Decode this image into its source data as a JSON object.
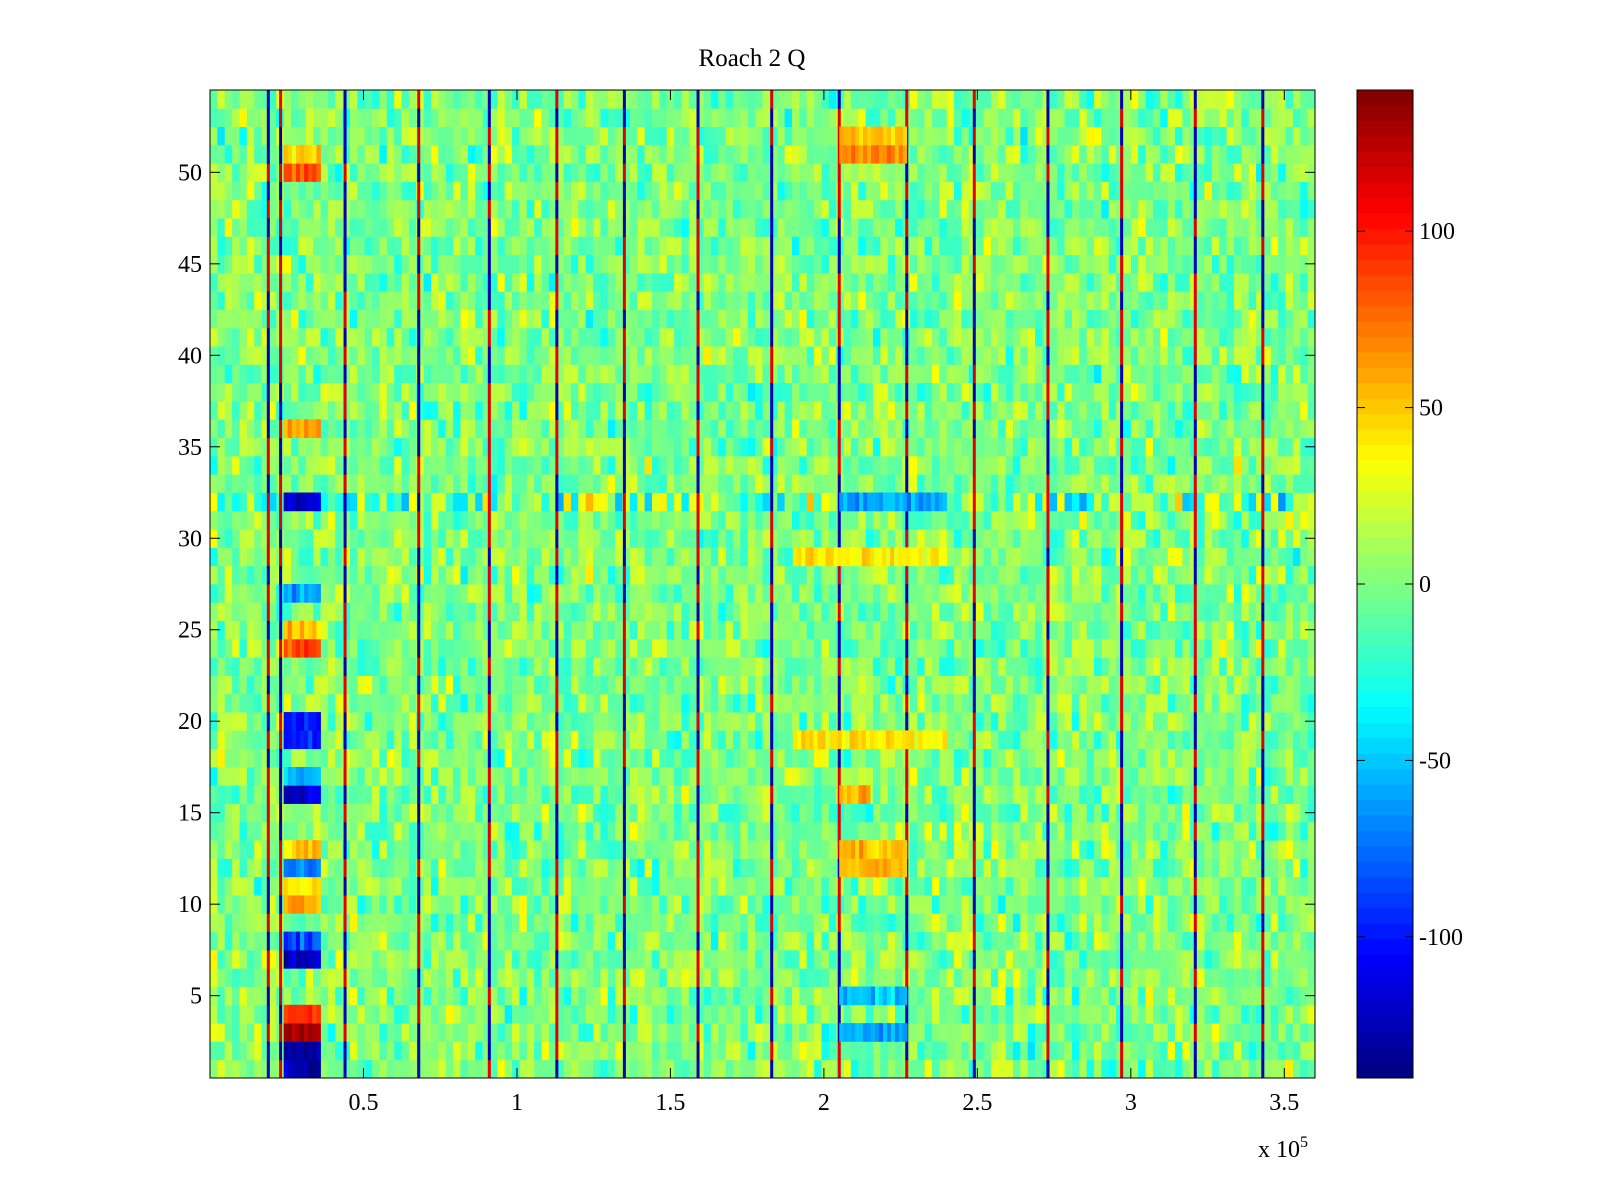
{
  "chart_data": {
    "type": "heatmap",
    "title": "Roach 2 Q",
    "xlabel": "",
    "ylabel": "",
    "x_exponent_label": "x 10",
    "x_exponent_power": "5",
    "xlim": [
      0,
      360000
    ],
    "ylim": [
      0.5,
      54.5
    ],
    "x_ticks": [
      {
        "value": 50000,
        "label": "0.5"
      },
      {
        "value": 100000,
        "label": "1"
      },
      {
        "value": 150000,
        "label": "1.5"
      },
      {
        "value": 200000,
        "label": "2"
      },
      {
        "value": 250000,
        "label": "2.5"
      },
      {
        "value": 300000,
        "label": "3"
      },
      {
        "value": 350000,
        "label": "3.5"
      }
    ],
    "y_ticks": [
      {
        "value": 5,
        "label": "5"
      },
      {
        "value": 10,
        "label": "10"
      },
      {
        "value": 15,
        "label": "15"
      },
      {
        "value": 20,
        "label": "20"
      },
      {
        "value": 25,
        "label": "25"
      },
      {
        "value": 30,
        "label": "30"
      },
      {
        "value": 35,
        "label": "35"
      },
      {
        "value": 40,
        "label": "40"
      },
      {
        "value": 45,
        "label": "45"
      },
      {
        "value": 50,
        "label": "50"
      }
    ],
    "rows": 54,
    "colormap": "jet",
    "colorbar": {
      "range": [
        -140,
        140
      ],
      "ticks": [
        {
          "value": 100,
          "label": "100"
        },
        {
          "value": 50,
          "label": "50"
        },
        {
          "value": 0,
          "label": "0"
        },
        {
          "value": -50,
          "label": "-50"
        },
        {
          "value": -100,
          "label": "-100"
        }
      ]
    },
    "vertical_stripes_x": [
      19000,
      23000,
      44000,
      68000,
      91000,
      113000,
      135000,
      159000,
      183000,
      205000,
      227000,
      249000,
      273000,
      297000,
      321000,
      343000
    ],
    "hotspots": [
      {
        "x_range": [
          24000,
          36000
        ],
        "row": 1,
        "value": -130
      },
      {
        "x_range": [
          24000,
          36000
        ],
        "row": 2,
        "value": -135
      },
      {
        "x_range": [
          24000,
          36000
        ],
        "row": 3,
        "value": 130
      },
      {
        "x_range": [
          24000,
          36000
        ],
        "row": 4,
        "value": 90
      },
      {
        "x_range": [
          24000,
          36000
        ],
        "row": 7,
        "value": -120
      },
      {
        "x_range": [
          24000,
          36000
        ],
        "row": 8,
        "value": -80
      },
      {
        "x_range": [
          24000,
          36000
        ],
        "row": 10,
        "value": 60
      },
      {
        "x_range": [
          24000,
          36000
        ],
        "row": 11,
        "value": 40
      },
      {
        "x_range": [
          24000,
          36000
        ],
        "row": 12,
        "value": -70
      },
      {
        "x_range": [
          24000,
          36000
        ],
        "row": 13,
        "value": 50
      },
      {
        "x_range": [
          24000,
          36000
        ],
        "row": 16,
        "value": -115
      },
      {
        "x_range": [
          24000,
          36000
        ],
        "row": 17,
        "value": -50
      },
      {
        "x_range": [
          24000,
          36000
        ],
        "row": 19,
        "value": -90
      },
      {
        "x_range": [
          24000,
          36000
        ],
        "row": 20,
        "value": -100
      },
      {
        "x_range": [
          24000,
          36000
        ],
        "row": 24,
        "value": 80
      },
      {
        "x_range": [
          24000,
          36000
        ],
        "row": 25,
        "value": 50
      },
      {
        "x_range": [
          24000,
          36000
        ],
        "row": 27,
        "value": -60
      },
      {
        "x_range": [
          24000,
          36000
        ],
        "row": 32,
        "value": -120
      },
      {
        "x_range": [
          24000,
          36000
        ],
        "row": 36,
        "value": 60
      },
      {
        "x_range": [
          24000,
          36000
        ],
        "row": 50,
        "value": 85
      },
      {
        "x_range": [
          24000,
          36000
        ],
        "row": 51,
        "value": 50
      },
      {
        "x_range": [
          205000,
          227000
        ],
        "row": 51,
        "value": 70
      },
      {
        "x_range": [
          205000,
          227000
        ],
        "row": 52,
        "value": 50
      },
      {
        "x_range": [
          205000,
          227000
        ],
        "row": 12,
        "value": 60
      },
      {
        "x_range": [
          205000,
          227000
        ],
        "row": 13,
        "value": 50
      },
      {
        "x_range": [
          205000,
          215000
        ],
        "row": 16,
        "value": 55
      },
      {
        "x_range": [
          190000,
          240000
        ],
        "row": 29,
        "value": 40
      },
      {
        "x_range": [
          190000,
          240000
        ],
        "row": 19,
        "value": 40
      },
      {
        "x_range": [
          205000,
          240000
        ],
        "row": 32,
        "value": -60
      },
      {
        "x_range": [
          205000,
          227000
        ],
        "row": 3,
        "value": -55
      },
      {
        "x_range": [
          205000,
          227000
        ],
        "row": 5,
        "value": -50
      }
    ],
    "row_bands": [
      {
        "row": 32,
        "x_range": [
          0,
          360000
        ],
        "value": 22
      }
    ]
  }
}
